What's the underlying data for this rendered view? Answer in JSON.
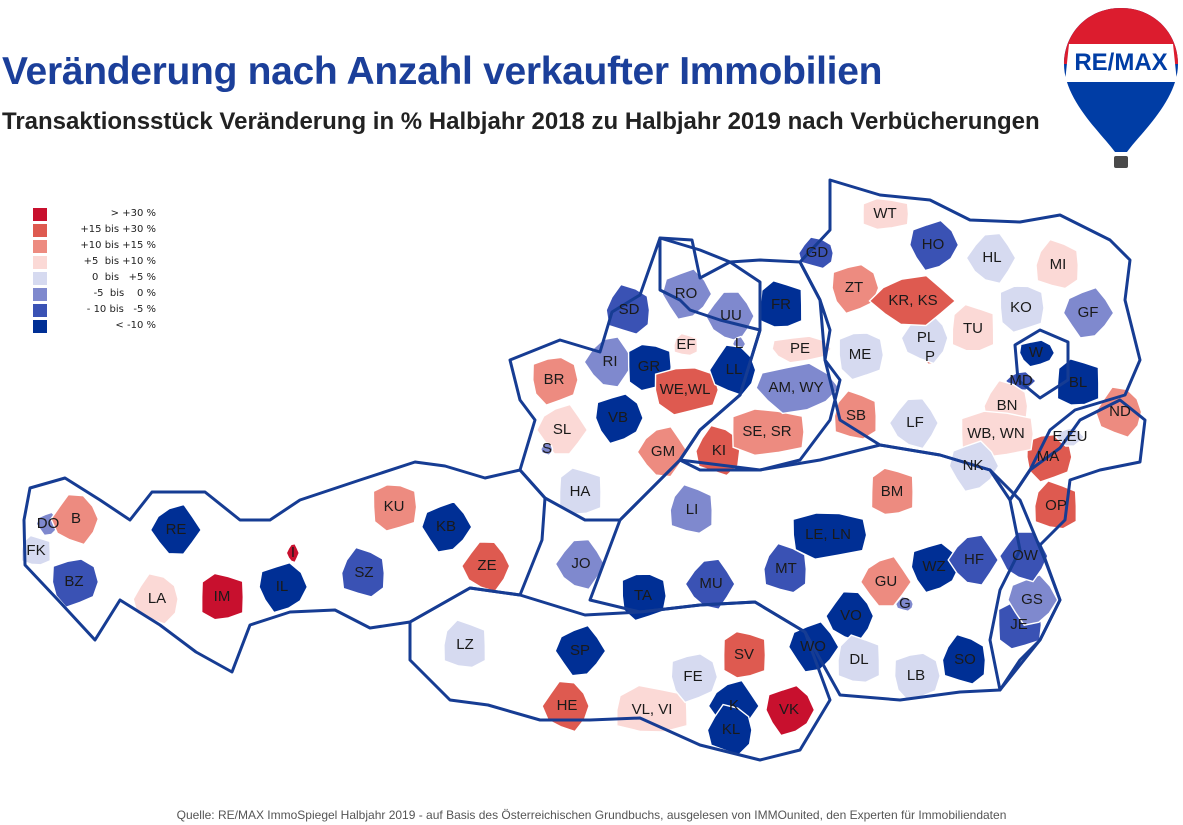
{
  "title": "Veränderung nach Anzahl verkaufter Immobilien",
  "subtitle": "Transaktionsstück Veränderung in % Halbjahr 2018 zu Halbjahr 2019 nach Verbücherungen",
  "logo": {
    "text": "RE/MAX",
    "colors": {
      "red": "#dc1c2e",
      "blue": "#003da5"
    }
  },
  "legend": [
    {
      "label": "> +30 %",
      "color": "#c8102e"
    },
    {
      "label": "+15 bis +30 %",
      "color": "#de5a50"
    },
    {
      "label": "+10 bis +15 %",
      "color": "#ed8b80"
    },
    {
      "label": "+5  bis +10 %",
      "color": "#fbd9d6"
    },
    {
      "label": "0  bis   +5 %",
      "color": "#d6daf0"
    },
    {
      "label": "-5  bis    0 %",
      "color": "#7f89ce"
    },
    {
      "label": "- 10 bis   -5 %",
      "color": "#3a52b4"
    },
    {
      "label": "< -10 %",
      "color": "#002f95"
    }
  ],
  "districts": [
    {
      "code": "DO",
      "category": 5
    },
    {
      "code": "B",
      "category": 2
    },
    {
      "code": "FK",
      "category": 4
    },
    {
      "code": "BZ",
      "category": 6
    },
    {
      "code": "RE",
      "category": 7
    },
    {
      "code": "LA",
      "category": 3
    },
    {
      "code": "IM",
      "category": 0
    },
    {
      "code": "IL",
      "category": 7
    },
    {
      "code": "I",
      "category": 0
    },
    {
      "code": "SZ",
      "category": 6
    },
    {
      "code": "KU",
      "category": 2
    },
    {
      "code": "KB",
      "category": 7
    },
    {
      "code": "ZE",
      "category": 1
    },
    {
      "code": "LZ",
      "category": 4
    },
    {
      "code": "BR",
      "category": 2
    },
    {
      "code": "SL",
      "category": 3
    },
    {
      "code": "S",
      "category": 5
    },
    {
      "code": "HA",
      "category": 4
    },
    {
      "code": "VB",
      "category": 7
    },
    {
      "code": "RI",
      "category": 5
    },
    {
      "code": "SD",
      "category": 6
    },
    {
      "code": "GR",
      "category": 7
    },
    {
      "code": "RO",
      "category": 5
    },
    {
      "code": "UU",
      "category": 5
    },
    {
      "code": "EF",
      "category": 3
    },
    {
      "code": "WE,WL",
      "category": 1
    },
    {
      "code": "L",
      "category": 5
    },
    {
      "code": "LL",
      "category": 7
    },
    {
      "code": "FR",
      "category": 7
    },
    {
      "code": "PE",
      "category": 3
    },
    {
      "code": "GM",
      "category": 2
    },
    {
      "code": "KI",
      "category": 1
    },
    {
      "code": "SE, SR",
      "category": 2
    },
    {
      "code": "AM, WY",
      "category": 5
    },
    {
      "code": "JO",
      "category": 5
    },
    {
      "code": "LI",
      "category": 5
    },
    {
      "code": "TA",
      "category": 7
    },
    {
      "code": "SP",
      "category": 7
    },
    {
      "code": "HE",
      "category": 1
    },
    {
      "code": "VL, VI",
      "category": 3
    },
    {
      "code": "FE",
      "category": 4
    },
    {
      "code": "K",
      "category": 7
    },
    {
      "code": "KL",
      "category": 7
    },
    {
      "code": "SV",
      "category": 1
    },
    {
      "code": "VK",
      "category": 0
    },
    {
      "code": "MU",
      "category": 6
    },
    {
      "code": "MT",
      "category": 6
    },
    {
      "code": "LE, LN",
      "category": 7
    },
    {
      "code": "WO",
      "category": 7
    },
    {
      "code": "VO",
      "category": 7
    },
    {
      "code": "DL",
      "category": 4
    },
    {
      "code": "LB",
      "category": 4
    },
    {
      "code": "GU",
      "category": 2
    },
    {
      "code": "G",
      "category": 5
    },
    {
      "code": "BM",
      "category": 2
    },
    {
      "code": "WZ",
      "category": 7
    },
    {
      "code": "HF",
      "category": 6
    },
    {
      "code": "SO",
      "category": 7
    },
    {
      "code": "JE",
      "category": 6
    },
    {
      "code": "GS",
      "category": 5
    },
    {
      "code": "OW",
      "category": 6
    },
    {
      "code": "OP",
      "category": 1
    },
    {
      "code": "MA",
      "category": 1
    },
    {
      "code": "E,EU",
      "category": 4
    },
    {
      "code": "ND",
      "category": 2
    },
    {
      "code": "BL",
      "category": 7
    },
    {
      "code": "W",
      "category": 7
    },
    {
      "code": "MD",
      "category": 6
    },
    {
      "code": "BN",
      "category": 3
    },
    {
      "code": "WB, WN",
      "category": 3
    },
    {
      "code": "NK",
      "category": 4
    },
    {
      "code": "LF",
      "category": 4
    },
    {
      "code": "SB",
      "category": 2
    },
    {
      "code": "ME",
      "category": 4
    },
    {
      "code": "P",
      "category": 1
    },
    {
      "code": "PL",
      "category": 4
    },
    {
      "code": "TU",
      "category": 3
    },
    {
      "code": "ZT",
      "category": 2
    },
    {
      "code": "KR, KS",
      "category": 1
    },
    {
      "code": "GD",
      "category": 6
    },
    {
      "code": "WT",
      "category": 3
    },
    {
      "code": "HO",
      "category": 6
    },
    {
      "code": "HL",
      "category": 4
    },
    {
      "code": "MI",
      "category": 3
    },
    {
      "code": "KO",
      "category": 4
    },
    {
      "code": "GF",
      "category": 5
    }
  ],
  "source": "Quelle: RE/MAX ImmoSpiegel Halbjahr 2019 - auf Basis des Österreichischen Grundbuchs, ausgelesen von IMMOunited, den Experten für Immobiliendaten"
}
